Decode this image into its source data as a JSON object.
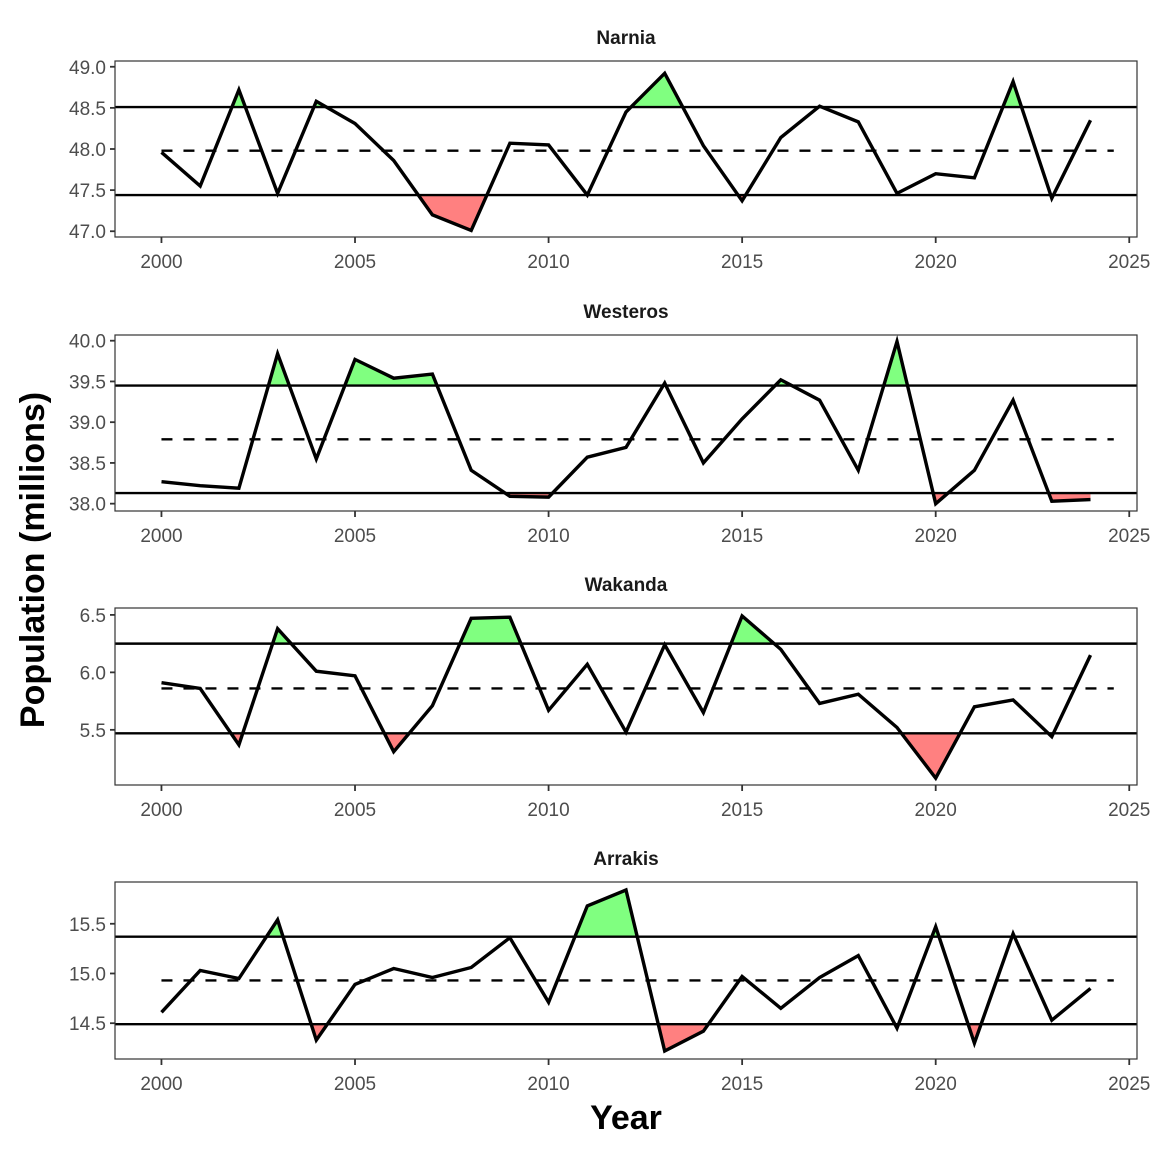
{
  "chart_data": {
    "type": "line",
    "xlabel": "Year",
    "ylabel": "Population (millions)",
    "x_ticks": [
      2000,
      2005,
      2010,
      2015,
      2020,
      2025
    ],
    "x_tick_labels": [
      "2000",
      "2005",
      "2010",
      "2015",
      "2020",
      "2025"
    ],
    "xlim": [
      1998.8,
      2025.2
    ],
    "colors": {
      "line": "#000000",
      "above_fill": "#80FF80",
      "below_fill": "#FF8080",
      "panel_border": "#333333",
      "tick_text": "#4d4d4d"
    },
    "panels": [
      {
        "title": "Narnia",
        "ylim": [
          46.93,
          49.07
        ],
        "y_ticks": [
          47.0,
          47.5,
          48.0,
          48.5,
          49.0
        ],
        "y_tick_labels": [
          "47.0",
          "47.5",
          "48.0",
          "48.5",
          "49.0"
        ],
        "mean": 47.98,
        "upper": 48.51,
        "lower": 47.44,
        "x": [
          2000,
          2001,
          2002,
          2003,
          2004,
          2005,
          2006,
          2007,
          2008,
          2009,
          2010,
          2011,
          2012,
          2013,
          2014,
          2015,
          2016,
          2017,
          2018,
          2019,
          2020,
          2021,
          2022,
          2023,
          2024
        ],
        "values": [
          47.96,
          47.55,
          48.72,
          47.46,
          48.58,
          48.31,
          47.86,
          47.2,
          47.01,
          48.07,
          48.05,
          47.44,
          48.45,
          48.92,
          48.04,
          47.37,
          48.14,
          48.52,
          48.33,
          47.46,
          47.7,
          47.65,
          48.82,
          47.4,
          48.35
        ]
      },
      {
        "title": "Westeros",
        "ylim": [
          37.91,
          40.07
        ],
        "y_ticks": [
          38.0,
          38.5,
          39.0,
          39.5,
          40.0
        ],
        "y_tick_labels": [
          "38.0",
          "38.5",
          "39.0",
          "39.5",
          "40.0"
        ],
        "mean": 38.79,
        "upper": 39.45,
        "lower": 38.13,
        "x": [
          2000,
          2001,
          2002,
          2003,
          2004,
          2005,
          2006,
          2007,
          2008,
          2009,
          2010,
          2011,
          2012,
          2013,
          2014,
          2015,
          2016,
          2017,
          2018,
          2019,
          2020,
          2021,
          2022,
          2023,
          2024
        ],
        "values": [
          38.27,
          38.22,
          38.19,
          39.84,
          38.55,
          39.77,
          39.54,
          39.59,
          38.41,
          38.09,
          38.08,
          38.57,
          38.69,
          39.48,
          38.5,
          39.04,
          39.52,
          39.27,
          38.41,
          39.99,
          38.0,
          38.41,
          39.27,
          38.03,
          38.05
        ]
      },
      {
        "title": "Wakanda",
        "ylim": [
          5.02,
          6.56
        ],
        "y_ticks": [
          5.5,
          6.0,
          6.5
        ],
        "y_tick_labels": [
          "5.5",
          "6.0",
          "6.5"
        ],
        "mean": 5.86,
        "upper": 6.25,
        "lower": 5.47,
        "x": [
          2000,
          2001,
          2002,
          2003,
          2004,
          2005,
          2006,
          2007,
          2008,
          2009,
          2010,
          2011,
          2012,
          2013,
          2014,
          2015,
          2016,
          2017,
          2018,
          2019,
          2020,
          2021,
          2022,
          2023,
          2024
        ],
        "values": [
          5.91,
          5.86,
          5.37,
          6.38,
          6.01,
          5.97,
          5.31,
          5.71,
          6.47,
          6.48,
          5.67,
          6.07,
          5.48,
          6.24,
          5.65,
          6.49,
          6.2,
          5.73,
          5.81,
          5.52,
          5.08,
          5.7,
          5.76,
          5.44,
          6.15
        ]
      },
      {
        "title": "Arrakis",
        "ylim": [
          14.14,
          15.92
        ],
        "y_ticks": [
          14.5,
          15.0,
          15.5
        ],
        "y_tick_labels": [
          "14.5",
          "15.0",
          "15.5"
        ],
        "mean": 14.93,
        "upper": 15.37,
        "lower": 14.49,
        "x": [
          2000,
          2001,
          2002,
          2003,
          2004,
          2005,
          2006,
          2007,
          2008,
          2009,
          2010,
          2011,
          2012,
          2013,
          2014,
          2015,
          2016,
          2017,
          2018,
          2019,
          2020,
          2021,
          2022,
          2023,
          2024
        ],
        "values": [
          14.61,
          15.03,
          14.95,
          15.54,
          14.33,
          14.89,
          15.05,
          14.96,
          15.06,
          15.36,
          14.71,
          15.68,
          15.84,
          14.22,
          14.42,
          14.97,
          14.65,
          14.96,
          15.18,
          14.45,
          15.47,
          14.3,
          15.4,
          14.53,
          14.85
        ]
      }
    ]
  }
}
